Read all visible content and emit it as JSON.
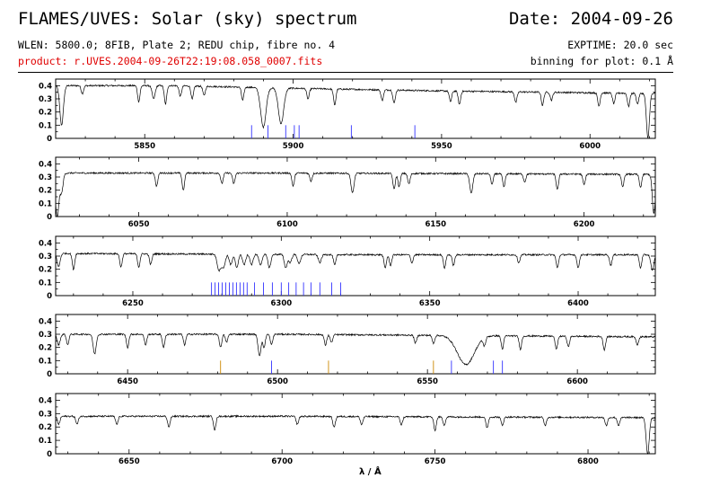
{
  "header": {
    "title": "FLAMES/UVES: Solar (sky) spectrum",
    "date": "Date: 2004-09-26",
    "subtitle": "WLEN: 5800.0; 8FIB, Plate 2; REDU chip, fibre no. 4",
    "product": "product: r.UVES.2004-09-26T22:19:08.058_0007.fits",
    "exptime": "EXPTIME: 20.0 sec",
    "binning": "binning for plot: 0.1 Å"
  },
  "colors": {
    "spectrum": "#000000",
    "marker_blue": "#3333ff",
    "marker_orange": "#cc8800",
    "product_text": "#e00000"
  },
  "chart_data": [
    {
      "type": "line",
      "xlim": [
        5820,
        6022
      ],
      "ylim": [
        0,
        0.45
      ],
      "xticks": [
        5850,
        5900,
        5950,
        6000
      ],
      "yticks": [
        0,
        0.1,
        0.2,
        0.3,
        0.4
      ],
      "ytick_labels": [
        "0",
        "0.1",
        "0.2",
        "0.3",
        "0.4"
      ],
      "continuum": [
        [
          5820,
          0.4
        ],
        [
          5860,
          0.4
        ],
        [
          5900,
          0.38
        ],
        [
          5950,
          0.36
        ],
        [
          6022,
          0.34
        ]
      ],
      "absorption_lines": [
        [
          5822,
          0.3,
          0.6
        ],
        [
          5829,
          0.06,
          0.4
        ],
        [
          5848,
          0.12,
          0.4
        ],
        [
          5853,
          0.1,
          0.5
        ],
        [
          5857,
          0.14,
          0.4
        ],
        [
          5862,
          0.08,
          0.4
        ],
        [
          5866,
          0.1,
          0.4
        ],
        [
          5870,
          0.07,
          0.4
        ],
        [
          5883,
          0.1,
          0.4
        ],
        [
          5889.95,
          0.3,
          0.9
        ],
        [
          5895.92,
          0.27,
          0.9
        ],
        [
          5905,
          0.08,
          0.4
        ],
        [
          5914,
          0.12,
          0.4
        ],
        [
          5930,
          0.08,
          0.4
        ],
        [
          5934,
          0.1,
          0.4
        ],
        [
          5953,
          0.08,
          0.4
        ],
        [
          5956,
          0.1,
          0.4
        ],
        [
          5975,
          0.08,
          0.4
        ],
        [
          5984,
          0.1,
          0.4
        ],
        [
          5987,
          0.06,
          0.4
        ],
        [
          6003,
          0.1,
          0.4
        ],
        [
          6008,
          0.08,
          0.4
        ],
        [
          6013,
          0.1,
          0.4
        ],
        [
          6016,
          0.08,
          0.4
        ],
        [
          6019.5,
          0.34,
          0.5
        ]
      ],
      "markers": [
        [
          5886.0,
          "blue"
        ],
        [
          5891.5,
          "blue"
        ],
        [
          5897.5,
          "blue"
        ],
        [
          5900.4,
          "blue"
        ],
        [
          5902.0,
          "blue"
        ],
        [
          5919.6,
          "blue"
        ],
        [
          5941.0,
          "blue"
        ]
      ]
    },
    {
      "type": "line",
      "xlim": [
        6022,
        6224
      ],
      "ylim": [
        0,
        0.45
      ],
      "xticks": [
        6050,
        6100,
        6150,
        6200
      ],
      "yticks": [
        0,
        0.1,
        0.2,
        0.3,
        0.4
      ],
      "ytick_labels": [
        "0",
        "0.1",
        "0.2",
        "0.3",
        "0.4"
      ],
      "continuum": [
        [
          6022,
          0.33
        ],
        [
          6100,
          0.33
        ],
        [
          6224,
          0.32
        ]
      ],
      "absorption_lines": [
        [
          6022.5,
          0.33,
          0.6
        ],
        [
          6024,
          0.14,
          0.5
        ],
        [
          6056,
          0.1,
          0.4
        ],
        [
          6065,
          0.13,
          0.4
        ],
        [
          6078,
          0.08,
          0.4
        ],
        [
          6082,
          0.08,
          0.4
        ],
        [
          6102,
          0.1,
          0.4
        ],
        [
          6108,
          0.06,
          0.4
        ],
        [
          6122,
          0.15,
          0.5
        ],
        [
          6136,
          0.12,
          0.4
        ],
        [
          6137.7,
          0.1,
          0.4
        ],
        [
          6141,
          0.08,
          0.4
        ],
        [
          6162,
          0.15,
          0.5
        ],
        [
          6169,
          0.08,
          0.4
        ],
        [
          6173,
          0.1,
          0.4
        ],
        [
          6180,
          0.06,
          0.4
        ],
        [
          6191,
          0.12,
          0.4
        ],
        [
          6200,
          0.08,
          0.4
        ],
        [
          6213,
          0.1,
          0.4
        ],
        [
          6219,
          0.1,
          0.4
        ],
        [
          6223.5,
          0.3,
          0.5
        ]
      ],
      "markers": []
    },
    {
      "type": "line",
      "xlim": [
        6224,
        6426
      ],
      "ylim": [
        0,
        0.45
      ],
      "xticks": [
        6250,
        6300,
        6350,
        6400
      ],
      "yticks": [
        0,
        0.1,
        0.2,
        0.3,
        0.4
      ],
      "ytick_labels": [
        "0",
        "0.1",
        "0.2",
        "0.3",
        "0.4"
      ],
      "continuum": [
        [
          6224,
          0.32
        ],
        [
          6326,
          0.31
        ],
        [
          6426,
          0.31
        ]
      ],
      "absorption_lines": [
        [
          6225,
          0.1,
          0.5
        ],
        [
          6230,
          0.12,
          0.4
        ],
        [
          6246,
          0.1,
          0.4
        ],
        [
          6252,
          0.1,
          0.4
        ],
        [
          6256,
          0.08,
          0.4
        ],
        [
          6279,
          0.12,
          0.6
        ],
        [
          6280.5,
          0.1,
          0.6
        ],
        [
          6283,
          0.08,
          0.5
        ],
        [
          6285,
          0.1,
          0.5
        ],
        [
          6287.5,
          0.08,
          0.5
        ],
        [
          6290,
          0.08,
          0.5
        ],
        [
          6293,
          0.08,
          0.5
        ],
        [
          6296,
          0.1,
          0.5
        ],
        [
          6301.5,
          0.1,
          0.5
        ],
        [
          6303,
          0.06,
          0.5
        ],
        [
          6306,
          0.07,
          0.5
        ],
        [
          6313,
          0.06,
          0.5
        ],
        [
          6318,
          0.08,
          0.4
        ],
        [
          6335,
          0.1,
          0.4
        ],
        [
          6336.8,
          0.08,
          0.4
        ],
        [
          6344,
          0.06,
          0.4
        ],
        [
          6355,
          0.1,
          0.4
        ],
        [
          6358,
          0.08,
          0.4
        ],
        [
          6380,
          0.06,
          0.4
        ],
        [
          6393,
          0.1,
          0.4
        ],
        [
          6400,
          0.1,
          0.4
        ],
        [
          6411,
          0.08,
          0.4
        ],
        [
          6421,
          0.1,
          0.4
        ],
        [
          6425,
          0.12,
          0.5
        ]
      ],
      "markers": [
        [
          6276.5,
          "blue"
        ],
        [
          6277.7,
          "blue"
        ],
        [
          6278.9,
          "blue"
        ],
        [
          6280.1,
          "blue"
        ],
        [
          6281.3,
          "blue"
        ],
        [
          6282.5,
          "blue"
        ],
        [
          6283.7,
          "blue"
        ],
        [
          6284.9,
          "blue"
        ],
        [
          6286.1,
          "blue"
        ],
        [
          6287.3,
          "blue"
        ],
        [
          6288.5,
          "blue"
        ],
        [
          6291,
          "blue"
        ],
        [
          6294,
          "blue"
        ],
        [
          6297,
          "blue"
        ],
        [
          6300,
          "blue"
        ],
        [
          6302.5,
          "blue"
        ],
        [
          6305,
          "blue"
        ],
        [
          6307.5,
          "blue"
        ],
        [
          6310,
          "blue"
        ],
        [
          6313,
          "blue"
        ],
        [
          6317,
          "blue"
        ],
        [
          6320,
          "blue"
        ]
      ]
    },
    {
      "type": "line",
      "xlim": [
        6426,
        6626
      ],
      "ylim": [
        0,
        0.45
      ],
      "xticks": [
        6450,
        6500,
        6550,
        6600
      ],
      "yticks": [
        0,
        0.1,
        0.2,
        0.3,
        0.4
      ],
      "ytick_labels": [
        "0",
        "0.1",
        "0.2",
        "0.3",
        "0.4"
      ],
      "continuum": [
        [
          6426,
          0.3
        ],
        [
          6500,
          0.3
        ],
        [
          6626,
          0.28
        ]
      ],
      "absorption_lines": [
        [
          6427,
          0.08,
          0.5
        ],
        [
          6430,
          0.08,
          0.4
        ],
        [
          6439,
          0.15,
          0.5
        ],
        [
          6450,
          0.1,
          0.4
        ],
        [
          6456,
          0.08,
          0.4
        ],
        [
          6462,
          0.1,
          0.4
        ],
        [
          6469,
          0.08,
          0.4
        ],
        [
          6481,
          0.1,
          0.4
        ],
        [
          6483,
          0.06,
          0.4
        ],
        [
          6494,
          0.16,
          0.5
        ],
        [
          6495.5,
          0.1,
          0.4
        ],
        [
          6498,
          0.08,
          0.4
        ],
        [
          6516,
          0.08,
          0.4
        ],
        [
          6518,
          0.06,
          0.4
        ],
        [
          6546,
          0.06,
          0.4
        ],
        [
          6552,
          0.06,
          0.4
        ],
        [
          6562.8,
          0.22,
          2.8
        ],
        [
          6569,
          0.06,
          0.4
        ],
        [
          6575,
          0.1,
          0.4
        ],
        [
          6581,
          0.1,
          0.4
        ],
        [
          6593,
          0.1,
          0.4
        ],
        [
          6597,
          0.08,
          0.4
        ],
        [
          6609,
          0.1,
          0.4
        ],
        [
          6620,
          0.06,
          0.4
        ]
      ],
      "markers": [
        [
          6481,
          "orange"
        ],
        [
          6498,
          "blue"
        ],
        [
          6517,
          "orange"
        ],
        [
          6552,
          "orange"
        ],
        [
          6558,
          "blue"
        ],
        [
          6572,
          "blue"
        ],
        [
          6575,
          "blue"
        ]
      ]
    },
    {
      "type": "line",
      "xlim": [
        6626,
        6822
      ],
      "ylim": [
        0,
        0.45
      ],
      "xticks": [
        6650,
        6700,
        6750,
        6800
      ],
      "yticks": [
        0,
        0.1,
        0.2,
        0.3,
        0.4
      ],
      "ytick_labels": [
        "0",
        "0.1",
        "0.2",
        "0.3",
        "0.4"
      ],
      "xlabel": "λ / Å",
      "continuum": [
        [
          6626,
          0.28
        ],
        [
          6700,
          0.28
        ],
        [
          6822,
          0.27
        ]
      ],
      "absorption_lines": [
        [
          6627,
          0.06,
          0.4
        ],
        [
          6633,
          0.06,
          0.4
        ],
        [
          6646,
          0.06,
          0.4
        ],
        [
          6663,
          0.08,
          0.4
        ],
        [
          6678,
          0.1,
          0.4
        ],
        [
          6705,
          0.06,
          0.4
        ],
        [
          6717,
          0.08,
          0.4
        ],
        [
          6726,
          0.06,
          0.4
        ],
        [
          6739,
          0.06,
          0.4
        ],
        [
          6750,
          0.1,
          0.4
        ],
        [
          6753,
          0.06,
          0.4
        ],
        [
          6767,
          0.08,
          0.4
        ],
        [
          6772,
          0.06,
          0.4
        ],
        [
          6786,
          0.06,
          0.4
        ],
        [
          6806,
          0.06,
          0.4
        ],
        [
          6810,
          0.06,
          0.4
        ],
        [
          6819.5,
          0.27,
          0.5
        ]
      ],
      "markers": []
    }
  ]
}
